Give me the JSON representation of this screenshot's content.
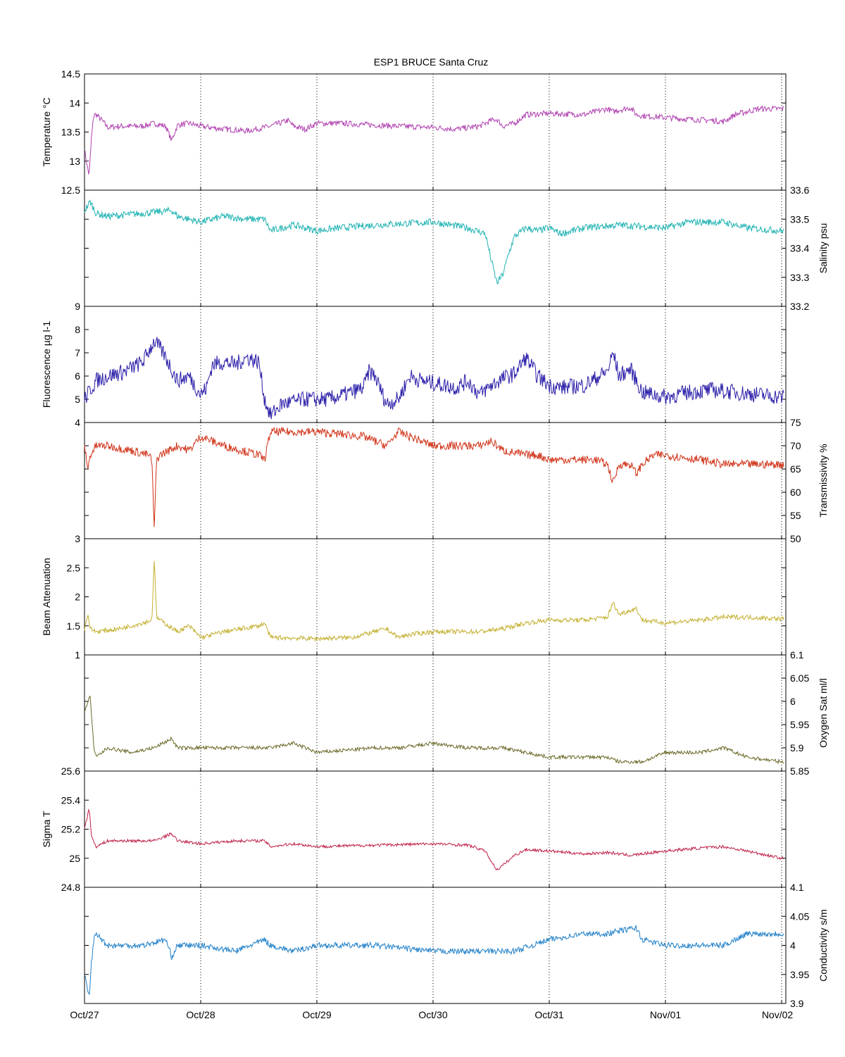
{
  "figure": {
    "title": "ESP1 BRUCE Santa Cruz",
    "x_ticks": [
      "Oct/27",
      "Oct/28",
      "Oct/29",
      "Oct/30",
      "Oct/31",
      "Nov/01",
      "Nov/02"
    ]
  },
  "chart_data": [
    {
      "type": "line",
      "name": "temperature",
      "ylabel": "Temperature °C",
      "axis_side": "left",
      "ylim": [
        12.5,
        14.5
      ],
      "yticks": [
        12.5,
        13,
        13.5,
        14,
        14.5
      ],
      "ytick_labels": [
        "12.5",
        "13",
        "13.5",
        "14",
        "14.5"
      ],
      "color": "#b041b0",
      "xlim_days": [
        0,
        6.02
      ],
      "x": [
        0,
        0.02,
        0.04,
        0.06,
        0.08,
        0.1,
        0.15,
        0.2,
        0.3,
        0.5,
        0.6,
        0.7,
        0.75,
        0.8,
        0.9,
        1.0,
        1.2,
        1.4,
        1.6,
        1.75,
        1.8,
        1.9,
        2.0,
        2.2,
        2.5,
        2.7,
        3.0,
        3.2,
        3.4,
        3.5,
        3.55,
        3.6,
        3.7,
        3.8,
        4.0,
        4.3,
        4.5,
        4.55,
        4.6,
        4.7,
        4.75,
        4.8,
        5.0,
        5.2,
        5.4,
        5.5,
        5.6,
        5.7,
        5.8,
        6.0
      ],
      "y": [
        13.2,
        12.95,
        12.75,
        13.4,
        13.8,
        13.8,
        13.7,
        13.58,
        13.6,
        13.6,
        13.65,
        13.6,
        13.35,
        13.62,
        13.65,
        13.6,
        13.55,
        13.52,
        13.6,
        13.7,
        13.6,
        13.55,
        13.65,
        13.65,
        13.62,
        13.6,
        13.58,
        13.55,
        13.6,
        13.7,
        13.72,
        13.6,
        13.65,
        13.8,
        13.82,
        13.8,
        13.9,
        13.85,
        13.88,
        13.92,
        13.8,
        13.78,
        13.75,
        13.72,
        13.7,
        13.68,
        13.8,
        13.85,
        13.9,
        13.9
      ],
      "noise": 0.05
    },
    {
      "type": "line",
      "name": "salinity",
      "ylabel": "Salinity psu",
      "axis_side": "right",
      "ylim": [
        33.2,
        33.6
      ],
      "yticks": [
        33.2,
        33.3,
        33.4,
        33.5,
        33.6
      ],
      "ytick_labels": [
        "33.2",
        "33.3",
        "33.4",
        "33.5",
        "33.6"
      ],
      "color": "#20b2b2",
      "xlim_days": [
        0,
        6.02
      ],
      "x": [
        0,
        0.05,
        0.1,
        0.2,
        0.5,
        0.75,
        0.8,
        1.0,
        1.2,
        1.4,
        1.55,
        1.6,
        1.7,
        1.8,
        2.0,
        2.2,
        2.5,
        3.0,
        3.3,
        3.45,
        3.5,
        3.55,
        3.6,
        3.65,
        3.7,
        3.8,
        3.9,
        4.0,
        4.1,
        4.2,
        4.3,
        4.6,
        5.0,
        5.2,
        5.5,
        5.7,
        6.0
      ],
      "y": [
        33.53,
        33.56,
        33.52,
        33.51,
        33.52,
        33.53,
        33.51,
        33.49,
        33.51,
        33.5,
        33.5,
        33.46,
        33.47,
        33.48,
        33.46,
        33.47,
        33.48,
        33.49,
        33.47,
        33.45,
        33.36,
        33.28,
        33.31,
        33.38,
        33.44,
        33.47,
        33.46,
        33.47,
        33.45,
        33.46,
        33.47,
        33.48,
        33.47,
        33.49,
        33.49,
        33.47,
        33.46
      ],
      "noise": 0.012
    },
    {
      "type": "line",
      "name": "fluorescence",
      "ylabel": "Fluorescence µg l-1",
      "axis_side": "left",
      "ylim": [
        4,
        9
      ],
      "yticks": [
        4,
        5,
        6,
        7,
        8,
        9
      ],
      "ytick_labels": [
        "4",
        "5",
        "6",
        "7",
        "8",
        "9"
      ],
      "color": "#2a1ea8",
      "xlim_days": [
        0,
        6.02
      ],
      "x": [
        0,
        0.1,
        0.2,
        0.35,
        0.5,
        0.6,
        0.65,
        0.7,
        0.8,
        0.9,
        1.0,
        1.05,
        1.1,
        1.2,
        1.3,
        1.4,
        1.5,
        1.55,
        1.6,
        1.7,
        1.9,
        2.1,
        2.3,
        2.4,
        2.45,
        2.5,
        2.6,
        2.7,
        2.8,
        2.9,
        3.0,
        3.2,
        3.3,
        3.4,
        3.5,
        3.6,
        3.7,
        3.8,
        3.9,
        4.0,
        4.1,
        4.3,
        4.5,
        4.55,
        4.6,
        4.7,
        4.8,
        5.0,
        5.2,
        5.4,
        5.6,
        5.8,
        6.0
      ],
      "y": [
        5.0,
        5.8,
        6.0,
        6.2,
        6.6,
        7.5,
        7.2,
        6.8,
        5.8,
        6.0,
        5.2,
        5.5,
        6.5,
        6.6,
        6.5,
        6.8,
        6.6,
        5.0,
        4.3,
        4.8,
        5.0,
        5.0,
        5.3,
        5.5,
        6.2,
        6.0,
        4.8,
        5.0,
        6.0,
        5.8,
        5.7,
        5.5,
        5.8,
        5.2,
        5.6,
        5.9,
        6.1,
        6.8,
        6.0,
        5.6,
        5.5,
        5.6,
        6.2,
        7.0,
        6.0,
        6.3,
        5.3,
        5.1,
        5.3,
        5.4,
        5.3,
        5.2,
        5.1
      ],
      "noise": 0.35
    },
    {
      "type": "line",
      "name": "transmissivity",
      "ylabel": "Transmissivity %",
      "axis_side": "right",
      "ylim": [
        50,
        75
      ],
      "yticks": [
        50,
        55,
        60,
        65,
        70,
        75
      ],
      "ytick_labels": [
        "50",
        "55",
        "60",
        "65",
        "70",
        "75"
      ],
      "color": "#d03218",
      "xlim_days": [
        0,
        6.02
      ],
      "x": [
        0,
        0.03,
        0.05,
        0.1,
        0.2,
        0.4,
        0.55,
        0.58,
        0.6,
        0.62,
        0.65,
        0.8,
        0.9,
        1.0,
        1.2,
        1.5,
        1.55,
        1.6,
        2.0,
        2.4,
        2.6,
        2.7,
        2.9,
        3.0,
        3.4,
        3.5,
        3.6,
        3.8,
        3.9,
        4.0,
        4.2,
        4.4,
        4.5,
        4.55,
        4.6,
        4.7,
        4.75,
        4.8,
        4.9,
        5.0,
        5.3,
        5.5,
        5.7,
        6.0
      ],
      "y": [
        70,
        65,
        68,
        70,
        70,
        69,
        68,
        67,
        52,
        67,
        68,
        70,
        69,
        72,
        70,
        68,
        67,
        73,
        73,
        72,
        70,
        73,
        71,
        70,
        70,
        71,
        69,
        68,
        68,
        67,
        67,
        67,
        66,
        62,
        66,
        66,
        64,
        66,
        68,
        68,
        67,
        66,
        66,
        66
      ],
      "noise": 0.9
    },
    {
      "type": "line",
      "name": "beam_attenuation",
      "ylabel": "Beam Attenuation",
      "axis_side": "left",
      "ylim": [
        1,
        3
      ],
      "yticks": [
        1,
        1.5,
        2,
        2.5,
        3
      ],
      "ytick_labels": [
        "1",
        "1.5",
        "2",
        "2.5",
        "3"
      ],
      "color": "#c4b030",
      "xlim_days": [
        0,
        6.02
      ],
      "x": [
        0,
        0.03,
        0.05,
        0.1,
        0.3,
        0.5,
        0.58,
        0.6,
        0.62,
        0.65,
        0.8,
        0.9,
        1.0,
        1.2,
        1.5,
        1.55,
        1.6,
        2.0,
        2.3,
        2.5,
        2.6,
        2.7,
        2.8,
        3.0,
        3.4,
        3.6,
        3.8,
        4.0,
        4.3,
        4.5,
        4.55,
        4.6,
        4.75,
        4.8,
        5.0,
        5.3,
        5.5,
        5.7,
        6.0
      ],
      "y": [
        1.45,
        1.7,
        1.45,
        1.4,
        1.45,
        1.55,
        1.6,
        2.65,
        1.65,
        1.6,
        1.4,
        1.5,
        1.3,
        1.4,
        1.5,
        1.55,
        1.3,
        1.28,
        1.3,
        1.4,
        1.45,
        1.3,
        1.35,
        1.4,
        1.4,
        1.45,
        1.55,
        1.6,
        1.6,
        1.65,
        1.9,
        1.7,
        1.8,
        1.6,
        1.55,
        1.6,
        1.65,
        1.65,
        1.62
      ],
      "noise": 0.04
    },
    {
      "type": "line",
      "name": "oxygen_sat",
      "ylabel": "Oxygen Sat ml/l",
      "axis_side": "right",
      "ylim": [
        5.85,
        6.1
      ],
      "yticks": [
        5.85,
        5.9,
        5.95,
        6,
        6.05,
        6.1
      ],
      "ytick_labels": [
        "5.85",
        "5.9",
        "5.95",
        "6",
        "6.05",
        "6.1"
      ],
      "color": "#6b6a2a",
      "xlim_days": [
        0,
        6.02
      ],
      "x": [
        0,
        0.03,
        0.05,
        0.08,
        0.1,
        0.15,
        0.2,
        0.4,
        0.6,
        0.75,
        0.8,
        1.0,
        1.3,
        1.6,
        1.8,
        2.0,
        2.5,
        2.7,
        3.0,
        3.3,
        3.6,
        3.8,
        4.0,
        4.3,
        4.5,
        4.6,
        4.8,
        5.0,
        5.3,
        5.5,
        5.7,
        6.0
      ],
      "y": [
        5.98,
        6.0,
        6.01,
        5.9,
        5.88,
        5.89,
        5.9,
        5.89,
        5.9,
        5.92,
        5.9,
        5.9,
        5.9,
        5.9,
        5.91,
        5.89,
        5.9,
        5.9,
        5.91,
        5.9,
        5.9,
        5.89,
        5.88,
        5.88,
        5.88,
        5.87,
        5.87,
        5.89,
        5.89,
        5.9,
        5.88,
        5.87
      ],
      "noise": 0.004
    },
    {
      "type": "line",
      "name": "sigma_t",
      "ylabel": "Sigma T",
      "axis_side": "left",
      "ylim": [
        24.8,
        25.6
      ],
      "yticks": [
        24.8,
        25,
        25.2,
        25.4,
        25.6
      ],
      "ytick_labels": [
        "24.8",
        "25",
        "25.2",
        "25.4",
        "25.6"
      ],
      "color": "#c02048",
      "xlim_days": [
        0,
        6.02
      ],
      "x": [
        0,
        0.04,
        0.06,
        0.1,
        0.2,
        0.4,
        0.6,
        0.75,
        0.8,
        1.0,
        1.3,
        1.55,
        1.6,
        1.8,
        2.0,
        2.5,
        3.0,
        3.3,
        3.45,
        3.5,
        3.55,
        3.6,
        3.7,
        3.8,
        4.0,
        4.3,
        4.5,
        4.7,
        5.0,
        5.3,
        5.5,
        5.7,
        6.0
      ],
      "y": [
        25.2,
        25.35,
        25.15,
        25.08,
        25.12,
        25.12,
        25.12,
        25.17,
        25.12,
        25.1,
        25.12,
        25.12,
        25.08,
        25.1,
        25.08,
        25.09,
        25.1,
        25.09,
        25.05,
        24.98,
        24.92,
        24.95,
        25.02,
        25.06,
        25.05,
        25.03,
        25.04,
        25.02,
        25.05,
        25.07,
        25.08,
        25.05,
        25.0
      ],
      "noise": 0.01
    },
    {
      "type": "line",
      "name": "conductivity",
      "ylabel": "Conductivity s/m",
      "axis_side": "right",
      "ylim": [
        3.9,
        4.1
      ],
      "yticks": [
        3.9,
        3.95,
        4,
        4.05,
        4.1
      ],
      "ytick_labels": [
        "3.9",
        "3.95",
        "4",
        "4.05",
        "4.1"
      ],
      "color": "#2080c8",
      "xlim_days": [
        0,
        6.02
      ],
      "x": [
        0,
        0.02,
        0.04,
        0.06,
        0.08,
        0.1,
        0.15,
        0.2,
        0.5,
        0.7,
        0.75,
        0.8,
        1.0,
        1.3,
        1.55,
        1.6,
        1.8,
        2.0,
        2.5,
        3.0,
        3.5,
        3.7,
        4.0,
        4.3,
        4.5,
        4.6,
        4.75,
        4.8,
        5.0,
        5.3,
        5.5,
        5.7,
        6.0
      ],
      "y": [
        3.95,
        3.93,
        3.91,
        3.97,
        4.01,
        4.02,
        4.01,
        4.0,
        4.0,
        4.01,
        3.98,
        4.0,
        4.0,
        3.99,
        4.01,
        4.0,
        3.99,
        4.0,
        4.0,
        3.99,
        3.99,
        3.99,
        4.01,
        4.02,
        4.02,
        4.025,
        4.03,
        4.01,
        4.0,
        4.0,
        4.0,
        4.02,
        4.02
      ],
      "noise": 0.005
    }
  ]
}
